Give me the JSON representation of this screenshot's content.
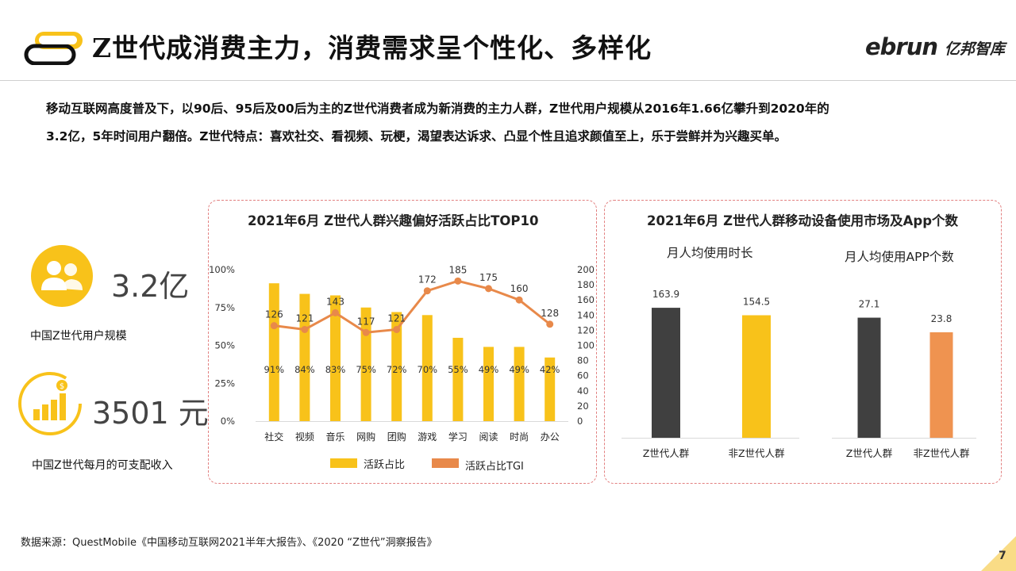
{
  "header": {
    "title": "Z世代成消费主力，消费需求呈个性化、多样化",
    "logo_text": "ebrun",
    "logo_cn": "亿邦智库"
  },
  "intro": {
    "line1": "移动互联网高度普及下，以90后、95后及00后为主的Z世代消费者成为新消费的主力人群，Z世代用户规模从2016年1.66亿攀升到2020年的",
    "line2": "3.2亿，5年时间用户翻倍。Z世代特点：喜欢社交、看视频、玩梗，渴望表达诉求、凸显个性且追求颜值至上，乐于尝鲜并为兴趣买单。"
  },
  "stats": [
    {
      "value": "3.2亿",
      "label": "中国Z世代用户规模",
      "icon": "users-icon"
    },
    {
      "value": "3501 元",
      "label": "中国Z世代每月的可支配收入",
      "icon": "income-growth-icon"
    }
  ],
  "colors": {
    "accent": "#f8c21a",
    "line": "#e8894a",
    "dark_bar": "#404040",
    "orange_bar": "#ef9350",
    "panel_border": "#e28080"
  },
  "chart_data": [
    {
      "type": "bar",
      "title": "2021年6月 Z世代人群兴趣偏好活跃占比TOP10",
      "categories": [
        "社交",
        "视频",
        "音乐",
        "网购",
        "团购",
        "游戏",
        "学习",
        "阅读",
        "时尚",
        "办公"
      ],
      "series": [
        {
          "name": "活跃占比",
          "type": "bar",
          "axis": "left",
          "values": [
            91,
            84,
            83,
            75,
            72,
            70,
            55,
            49,
            49,
            42
          ],
          "labels": [
            "91%",
            "84%",
            "83%",
            "75%",
            "72%",
            "70%",
            "55%",
            "49%",
            "49%",
            "42%"
          ]
        },
        {
          "name": "活跃占比TGI",
          "type": "line",
          "axis": "right",
          "values": [
            126,
            121,
            143,
            117,
            121,
            172,
            185,
            175,
            160,
            128
          ],
          "labels": [
            "126",
            "121",
            "143",
            "117",
            "121",
            "172",
            "185",
            "175",
            "160",
            "128"
          ]
        }
      ],
      "y_left": {
        "min": 0,
        "max": 100,
        "ticks": [
          "0%",
          "25%",
          "50%",
          "75%",
          "100%"
        ],
        "tick_values": [
          0,
          25,
          50,
          75,
          100
        ]
      },
      "y_right": {
        "min": 0,
        "max": 200,
        "ticks": [
          "0",
          "20",
          "40",
          "60",
          "80",
          "100",
          "120",
          "140",
          "160",
          "180",
          "200"
        ],
        "tick_values": [
          0,
          20,
          40,
          60,
          80,
          100,
          120,
          140,
          160,
          180,
          200
        ]
      },
      "legend_position": "bottom"
    },
    {
      "type": "bar",
      "title": "2021年6月 Z世代人群移动设备使用市场及App个数",
      "panels": [
        {
          "subtitle": "月人均使用时长",
          "categories": [
            "Z世代人群",
            "非Z世代人群"
          ],
          "values": [
            163.9,
            154.5
          ],
          "labels": [
            "163.9",
            "154.5"
          ],
          "colors": [
            "#404040",
            "#f8c21a"
          ],
          "ylim": [
            0,
            190
          ]
        },
        {
          "subtitle": "月人均使用APP个数",
          "categories": [
            "Z世代人群",
            "非Z世代人群"
          ],
          "values": [
            27.1,
            23.8
          ],
          "labels": [
            "27.1",
            "23.8"
          ],
          "colors": [
            "#404040",
            "#ef9350"
          ],
          "ylim": [
            0,
            34
          ]
        }
      ]
    }
  ],
  "footer": {
    "source": "数据来源：QuestMobile《中国移动互联网2021半年大报告》、《2020 “Z世代”洞察报告》",
    "page_number": "7"
  }
}
